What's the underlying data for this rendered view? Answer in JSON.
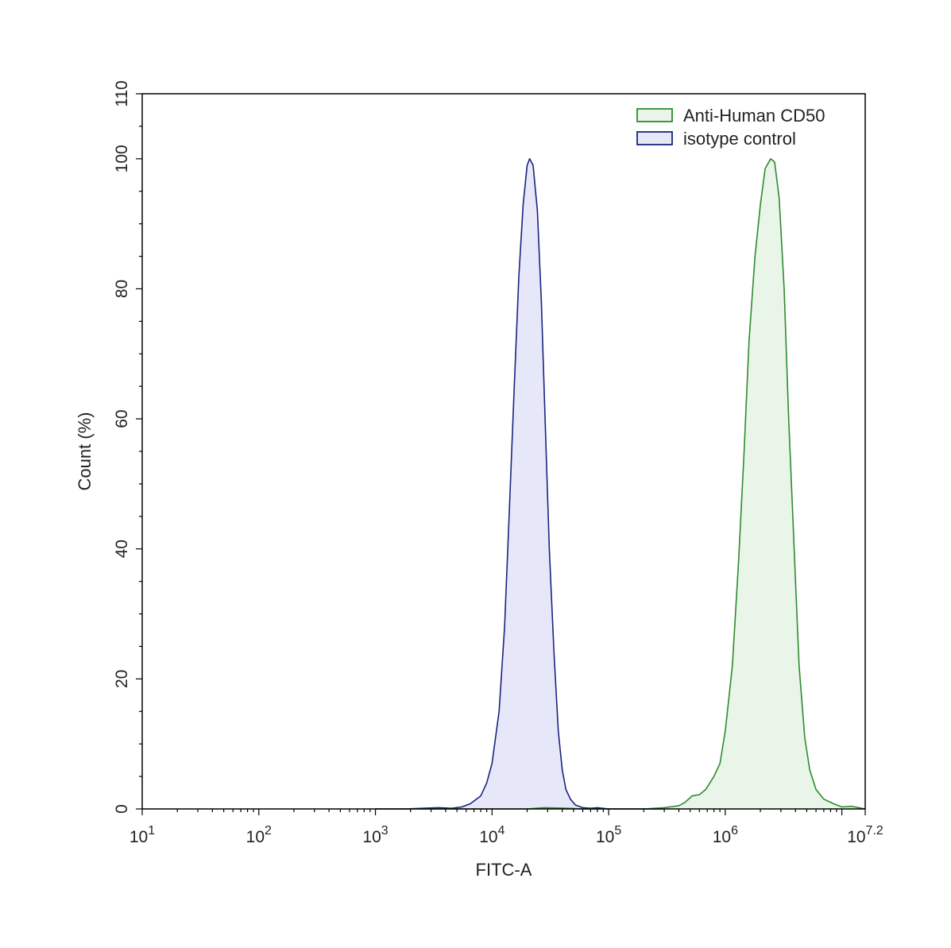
{
  "chart_data": {
    "type": "area",
    "title": "",
    "xlabel": "FITC-A",
    "ylabel": "Count  (%)",
    "x_scale": "log10",
    "xlim": [
      10,
      15848931.92
    ],
    "ylim": [
      0,
      110
    ],
    "x_ticks": [
      {
        "base": "10",
        "exp": "1"
      },
      {
        "base": "10",
        "exp": "2"
      },
      {
        "base": "10",
        "exp": "3"
      },
      {
        "base": "10",
        "exp": "4"
      },
      {
        "base": "10",
        "exp": "5"
      },
      {
        "base": "10",
        "exp": "6"
      },
      {
        "base": "10",
        "exp": "7.2"
      }
    ],
    "y_ticks": [
      "0",
      "20",
      "40",
      "60",
      "80",
      "100",
      "110"
    ],
    "grid": false,
    "legend_position": "top-right",
    "series": [
      {
        "name": "Anti-Human CD50",
        "color": "#2e8b2e",
        "fill": "#e8f5e8",
        "points": [
          [
            1000,
            0
          ],
          [
            20000,
            0
          ],
          [
            28000,
            0.2
          ],
          [
            45000,
            0.1
          ],
          [
            60000,
            0
          ],
          [
            100000,
            0
          ],
          [
            200000,
            0
          ],
          [
            300000,
            0.2
          ],
          [
            400000,
            0.5
          ],
          [
            450000,
            1.0
          ],
          [
            520000,
            2.0
          ],
          [
            600000,
            2.2
          ],
          [
            680000,
            3.0
          ],
          [
            800000,
            5.0
          ],
          [
            900000,
            7.0
          ],
          [
            1000000,
            12.0
          ],
          [
            1150000,
            22.0
          ],
          [
            1300000,
            38.0
          ],
          [
            1450000,
            55.0
          ],
          [
            1600000,
            72.0
          ],
          [
            1800000,
            85.0
          ],
          [
            2000000,
            93.0
          ],
          [
            2200000,
            98.5
          ],
          [
            2450000,
            100.0
          ],
          [
            2650000,
            99.5
          ],
          [
            2900000,
            94.0
          ],
          [
            3200000,
            80.0
          ],
          [
            3500000,
            60.0
          ],
          [
            3900000,
            40.0
          ],
          [
            4300000,
            22.0
          ],
          [
            4800000,
            11.0
          ],
          [
            5300000,
            6.0
          ],
          [
            6000000,
            3.0
          ],
          [
            7000000,
            1.5
          ],
          [
            8500000,
            0.8
          ],
          [
            10000000,
            0.3
          ],
          [
            12000000,
            0.4
          ],
          [
            14000000,
            0.2
          ],
          [
            15848931,
            0
          ]
        ]
      },
      {
        "name": "isotype control",
        "color": "#1a237e",
        "fill": "#e6e8fa",
        "points": [
          [
            1000,
            0
          ],
          [
            1800,
            0
          ],
          [
            2500,
            0.1
          ],
          [
            3500,
            0.2
          ],
          [
            4500,
            0.1
          ],
          [
            5500,
            0.3
          ],
          [
            6500,
            0.8
          ],
          [
            8000,
            2.0
          ],
          [
            9000,
            4.0
          ],
          [
            10000,
            7.0
          ],
          [
            11500,
            15.0
          ],
          [
            12800,
            28.0
          ],
          [
            14000,
            45.0
          ],
          [
            15500,
            65.0
          ],
          [
            17000,
            82.0
          ],
          [
            18500,
            93.0
          ],
          [
            20000,
            99.0
          ],
          [
            21000,
            100.0
          ],
          [
            22500,
            99.0
          ],
          [
            24500,
            92.0
          ],
          [
            26500,
            78.0
          ],
          [
            28500,
            60.0
          ],
          [
            31000,
            40.0
          ],
          [
            34000,
            24.0
          ],
          [
            37000,
            12.0
          ],
          [
            40000,
            6.0
          ],
          [
            43000,
            3.0
          ],
          [
            47000,
            1.5
          ],
          [
            52000,
            0.6
          ],
          [
            60000,
            0.2
          ],
          [
            70000,
            0.1
          ],
          [
            80000,
            0.2
          ],
          [
            100000,
            0
          ],
          [
            300000,
            0
          ]
        ]
      }
    ]
  }
}
